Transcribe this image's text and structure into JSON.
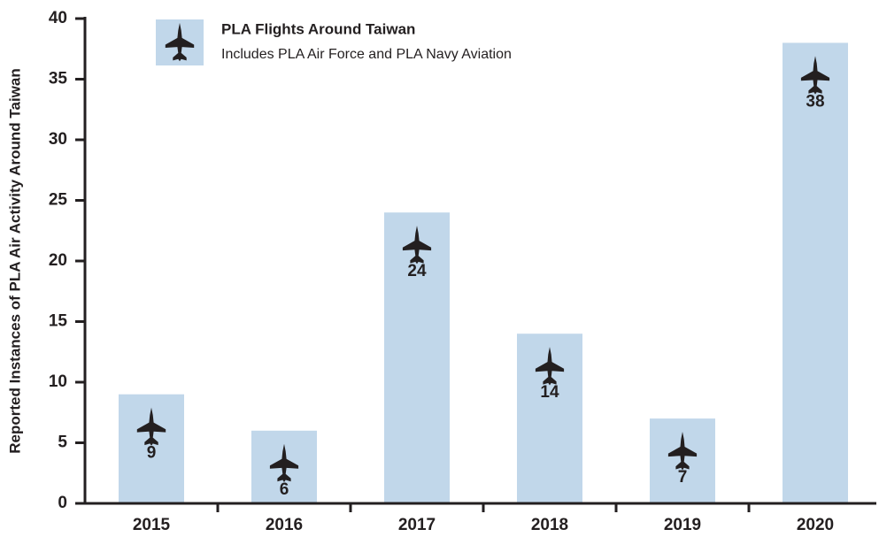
{
  "chart_data": {
    "type": "bar",
    "legend_title": "PLA Flights Around Taiwan",
    "legend_subtitle": "Includes PLA Air Force and PLA Navy Aviation",
    "y_label": "Reported Instances of PLA Air Activity Around Taiwan",
    "categories": [
      "2015",
      "2016",
      "2017",
      "2018",
      "2019",
      "2020"
    ],
    "values": [
      9,
      6,
      24,
      14,
      7,
      38
    ],
    "color": "#c1d7ea",
    "ylim": [
      0,
      40
    ],
    "yticks": [
      0,
      5,
      10,
      15,
      20,
      25,
      30,
      35,
      40
    ],
    "grid": false
  }
}
